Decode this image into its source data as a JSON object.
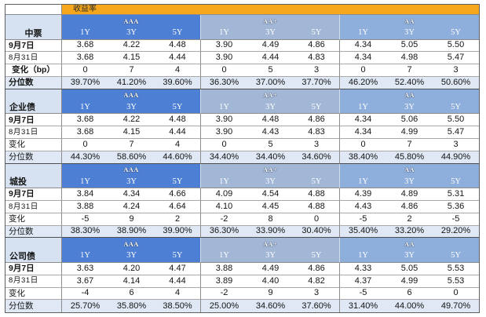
{
  "title": "收益率",
  "header": {
    "ratings": [
      "AAA",
      "AA+",
      "AA"
    ],
    "tenors": [
      "1Y",
      "3Y",
      "5Y"
    ]
  },
  "colors": {
    "title_bg": "#f6a71b",
    "rating_bg": [
      "#4d7fd4",
      "#a2b6d6",
      "#8eaedb"
    ],
    "label_bg": "#d6e2f2",
    "percentile_row_bg": "#dfe8f4"
  },
  "sections": [
    {
      "name": "中票",
      "rows": [
        {
          "label": "9月7日",
          "values": [
            "3.68",
            "4.22",
            "4.48",
            "3.90",
            "4.49",
            "4.86",
            "4.34",
            "5.05",
            "5.50"
          ]
        },
        {
          "label": "8月31日",
          "values": [
            "3.68",
            "4.15",
            "4.44",
            "3.90",
            "4.44",
            "4.83",
            "4.34",
            "4.98",
            "5.47"
          ]
        },
        {
          "label": "变化（bp）",
          "values": [
            "0",
            "7",
            "4",
            "0",
            "5",
            "3",
            "0",
            "7",
            "3"
          ]
        },
        {
          "label": "分位数",
          "values": [
            "39.70%",
            "41.20%",
            "39.60%",
            "36.30%",
            "37.00%",
            "37.70%",
            "46.20%",
            "52.40%",
            "50.60%"
          ]
        }
      ]
    },
    {
      "name": "企业债",
      "rows": [
        {
          "label": "9月7日",
          "values": [
            "3.68",
            "4.22",
            "4.48",
            "3.90",
            "4.48",
            "4.86",
            "4.34",
            "5.06",
            "5.50"
          ]
        },
        {
          "label": "8月31日",
          "values": [
            "3.68",
            "4.15",
            "4.44",
            "3.90",
            "4.43",
            "4.83",
            "4.34",
            "4.99",
            "5.47"
          ]
        },
        {
          "label": "变化",
          "values": [
            "0",
            "7",
            "4",
            "0",
            "5",
            "3",
            "0",
            "7",
            "3"
          ]
        },
        {
          "label": "分位数",
          "values": [
            "44.30%",
            "58.60%",
            "44.60%",
            "34.40%",
            "34.40%",
            "34.60%",
            "38.40%",
            "45.80%",
            "44.90%"
          ]
        }
      ]
    },
    {
      "name": "城投",
      "rows": [
        {
          "label": "9月7日",
          "values": [
            "3.84",
            "4.34",
            "4.66",
            "4.09",
            "4.54",
            "4.88",
            "4.39",
            "4.89",
            "5.31"
          ]
        },
        {
          "label": "8月31日",
          "values": [
            "3.88",
            "4.24",
            "4.64",
            "4.10",
            "4.45",
            "4.88",
            "4.43",
            "4.86",
            "5.36"
          ]
        },
        {
          "label": "变化",
          "values": [
            "-5",
            "9",
            "2",
            "-2",
            "8",
            "0",
            "-5",
            "2",
            "-5"
          ]
        },
        {
          "label": "分位数",
          "values": [
            "38.30%",
            "38.90%",
            "39.90%",
            "36.30%",
            "33.90%",
            "30.40%",
            "35.40%",
            "33.20%",
            "29.20%"
          ]
        }
      ]
    },
    {
      "name": "公司债",
      "rows": [
        {
          "label": "9月7日",
          "values": [
            "3.63",
            "4.20",
            "4.47",
            "3.88",
            "4.49",
            "4.86",
            "4.33",
            "5.05",
            "5.53"
          ]
        },
        {
          "label": "8月31日",
          "values": [
            "3.67",
            "4.14",
            "4.44",
            "3.89",
            "4.40",
            "4.82",
            "4.37",
            "4.99",
            "5.53"
          ]
        },
        {
          "label": "变化",
          "values": [
            "-4",
            "6",
            "4",
            "-2",
            "9",
            "3",
            "-5",
            "6",
            "0"
          ]
        },
        {
          "label": "分位数",
          "values": [
            "25.70%",
            "35.80%",
            "38.50%",
            "25.00%",
            "34.60%",
            "37.60%",
            "31.40%",
            "44.00%",
            "49.70%"
          ]
        }
      ]
    }
  ]
}
